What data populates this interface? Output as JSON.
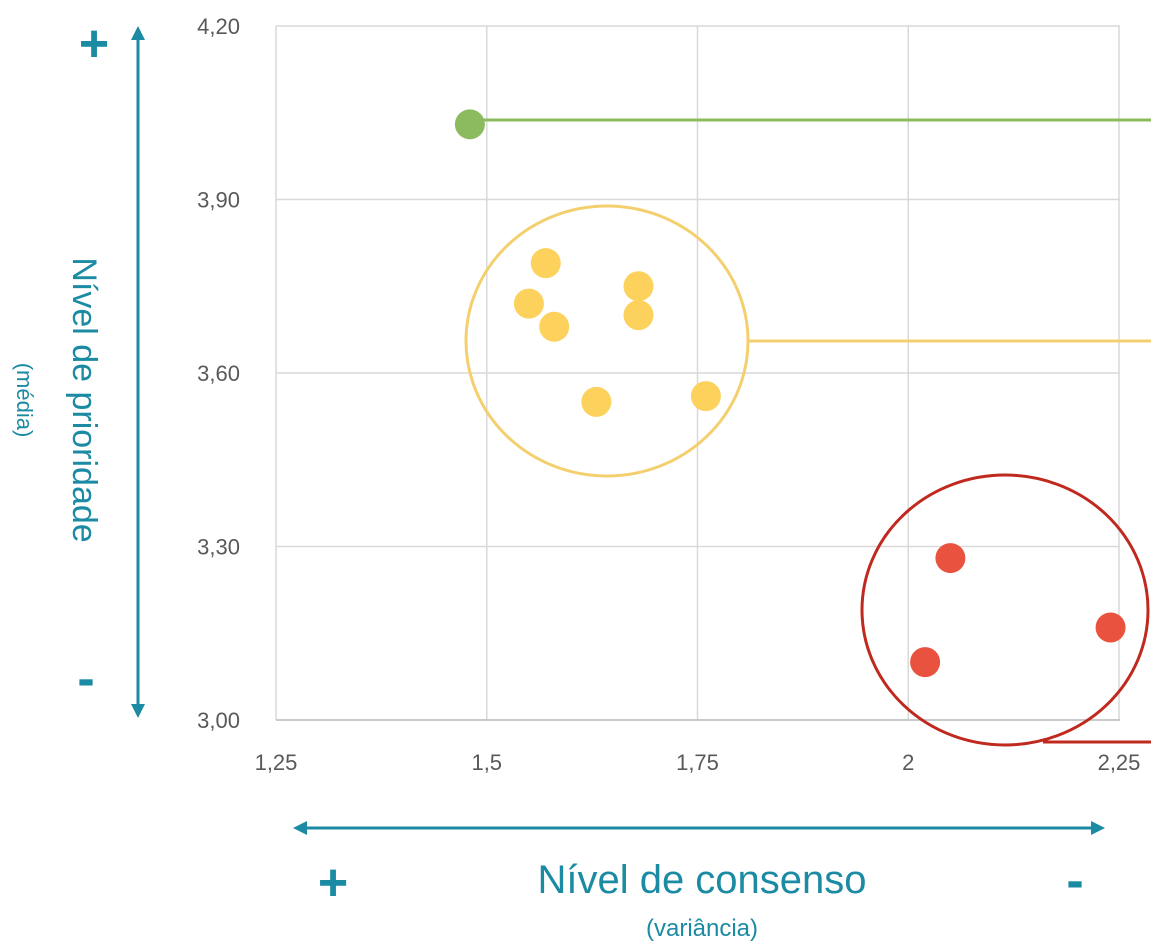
{
  "chart_data": {
    "type": "scatter",
    "title": "",
    "xlim": [
      1.25,
      2.25
    ],
    "ylim": [
      3.0,
      4.2
    ],
    "x_ticks": [
      {
        "value": 1.25,
        "label": "1,25"
      },
      {
        "value": 1.5,
        "label": "1,5"
      },
      {
        "value": 1.75,
        "label": "1,75"
      },
      {
        "value": 2.0,
        "label": "2"
      },
      {
        "value": 2.25,
        "label": "2,25"
      }
    ],
    "y_ticks": [
      {
        "value": 3.0,
        "label": "3,00"
      },
      {
        "value": 3.3,
        "label": "3,30"
      },
      {
        "value": 3.6,
        "label": "3,60"
      },
      {
        "value": 3.9,
        "label": "3,90"
      },
      {
        "value": 4.2,
        "label": "4,20"
      }
    ],
    "grid": true,
    "series": [
      {
        "color": "#8cbb5f",
        "points": [
          {
            "x": 1.48,
            "y": 4.03
          }
        ]
      },
      {
        "color": "#fcd15c",
        "points": [
          {
            "x": 1.57,
            "y": 3.79
          },
          {
            "x": 1.55,
            "y": 3.72
          },
          {
            "x": 1.58,
            "y": 3.68
          },
          {
            "x": 1.68,
            "y": 3.75
          },
          {
            "x": 1.68,
            "y": 3.7
          },
          {
            "x": 1.63,
            "y": 3.55
          },
          {
            "x": 1.76,
            "y": 3.56
          }
        ]
      },
      {
        "color": "#e9523e",
        "points": [
          {
            "x": 2.05,
            "y": 3.28
          },
          {
            "x": 2.24,
            "y": 3.16
          },
          {
            "x": 2.02,
            "y": 3.1
          }
        ]
      }
    ],
    "y_axis": {
      "title": "Nível de prioridade",
      "subtitle": "(média)",
      "plus": "+",
      "minus": "-"
    },
    "x_axis": {
      "title": "Nível de consenso",
      "subtitle": "(variância)",
      "plus": "+",
      "minus": "-"
    },
    "colors": {
      "axis": "#1b8aa3",
      "grid": "#d9d9d9",
      "green": "#8cbb5f",
      "yellow": "#fcd15c",
      "red": "#e9523e",
      "red_circle": "#c0291e"
    }
  }
}
